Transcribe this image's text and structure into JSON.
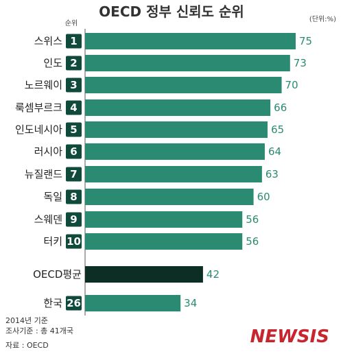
{
  "chart_data": {
    "type": "bar",
    "orientation": "horizontal",
    "title": "OECD 정부 신뢰도 순위",
    "unit": "(단위:%)",
    "rank_header": "순위",
    "categories": [
      "스위스",
      "인도",
      "노르웨이",
      "룩셈부르크",
      "인도네시아",
      "러시아",
      "뉴질랜드",
      "독일",
      "스웨덴",
      "터키",
      "OECD평균",
      "한국"
    ],
    "ranks": [
      "1",
      "2",
      "3",
      "4",
      "5",
      "6",
      "7",
      "8",
      "9",
      "10",
      "",
      "26"
    ],
    "values": [
      75,
      73,
      70,
      66,
      65,
      64,
      63,
      60,
      56,
      56,
      42,
      34
    ],
    "xlim": [
      0,
      80
    ],
    "grid": false,
    "legend": "none"
  },
  "colors": {
    "bar": "#2a8a72",
    "average_bar": "#0c2e24",
    "rank_badge": "#0f4a3a",
    "value_text": "#2a8a72"
  },
  "footnotes": [
    "2014년 기준",
    "조사기준 : 총 41개국",
    "자료 : OECD"
  ],
  "logo": "NEWSIS"
}
